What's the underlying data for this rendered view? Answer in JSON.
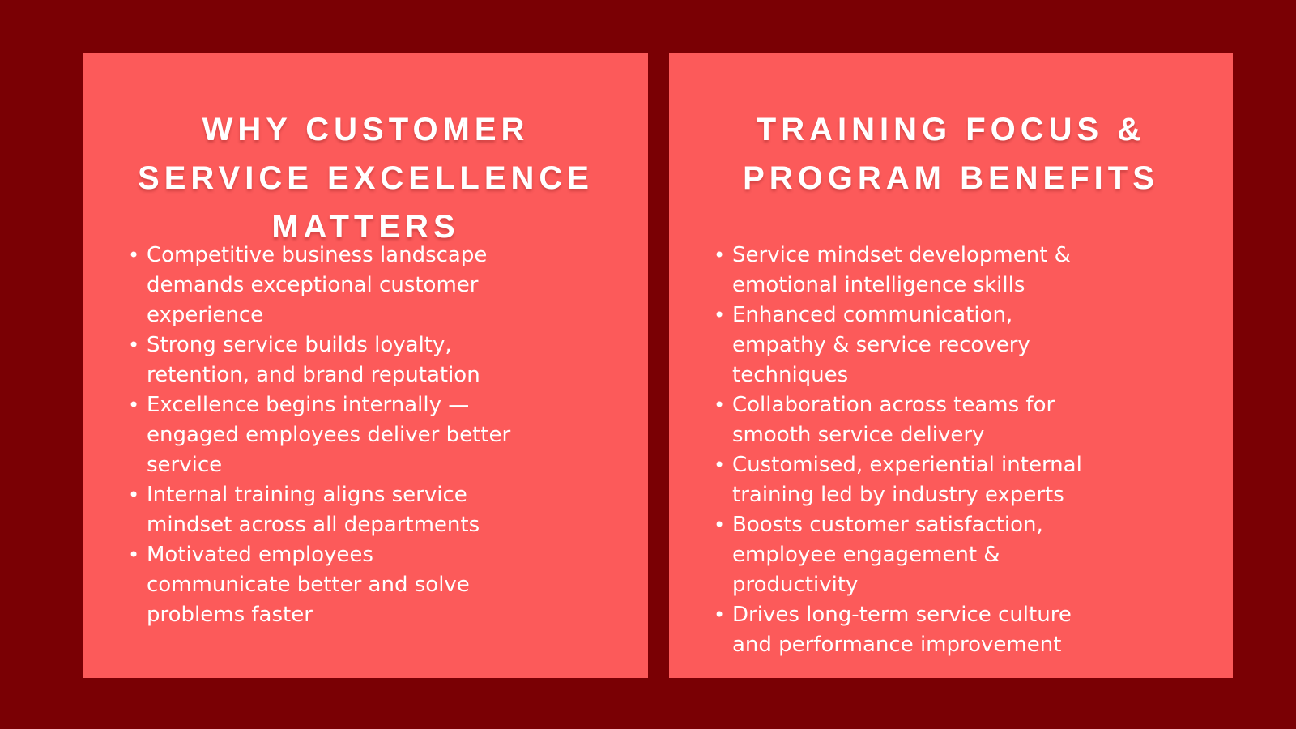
{
  "slide": {
    "background_color": "#7A0004",
    "card_color": "#FC5A5A",
    "text_color": "#FFFFFF",
    "bullet_marker": "•"
  },
  "cards": [
    {
      "title_lines": [
        "WHY CUSTOMER",
        "SERVICE EXCELLENCE",
        "MATTERS"
      ],
      "bullets": [
        "Competitive business landscape\ndemands exceptional customer\nexperience",
        "Strong service builds loyalty,\nretention, and brand reputation",
        "Excellence begins internally —\nengaged employees deliver better\nservice",
        "Internal training aligns service\nmindset across all departments",
        "Motivated employees\ncommunicate better and solve\nproblems faster"
      ]
    },
    {
      "title_lines": [
        "TRAINING FOCUS &",
        "PROGRAM BENEFITS"
      ],
      "bullets": [
        "Service mindset development &\nemotional intelligence skills",
        "Enhanced communication,\nempathy & service recovery\ntechniques",
        "Collaboration across teams for\nsmooth service delivery",
        "Customised, experiential internal\ntraining led by industry experts",
        "Boosts customer satisfaction,\nemployee engagement &\nproductivity",
        "Drives long-term service culture\nand performance improvement"
      ]
    }
  ]
}
